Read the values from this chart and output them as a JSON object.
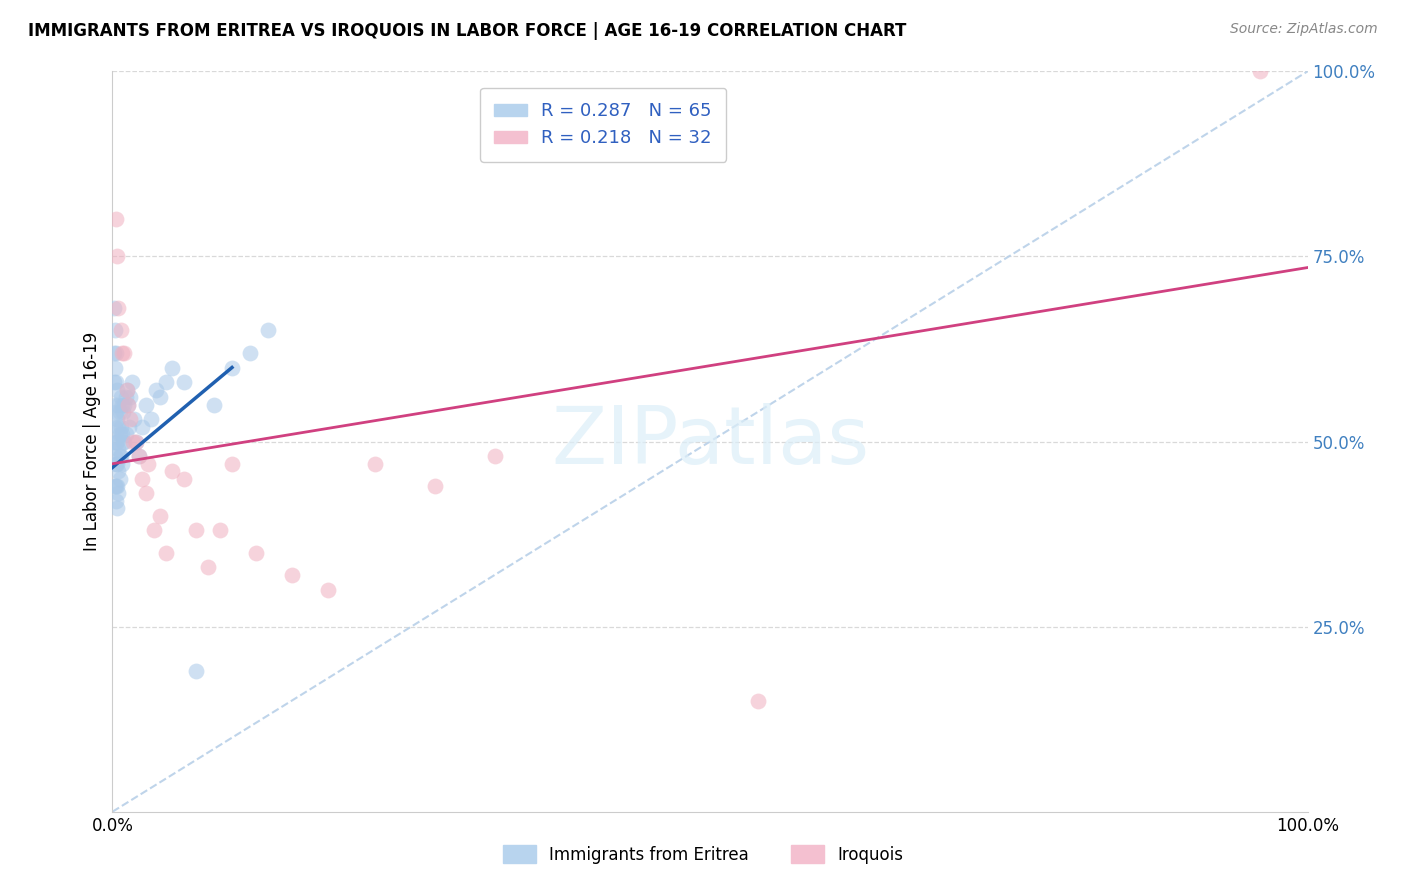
{
  "title": "IMMIGRANTS FROM ERITREA VS IROQUOIS IN LABOR FORCE | AGE 16-19 CORRELATION CHART",
  "source": "Source: ZipAtlas.com",
  "ylabel": "In Labor Force | Age 16-19",
  "legend_entry1": "R = 0.287   N = 65",
  "legend_entry2": "R = 0.218   N = 32",
  "legend_label1": "Immigrants from Eritrea",
  "legend_label2": "Iroquois",
  "blue_scatter_color": "#a8c8e8",
  "pink_scatter_color": "#f0b0c0",
  "blue_line_color": "#2060b0",
  "pink_line_color": "#d04080",
  "diagonal_color": "#b8d0e8",
  "background": "#ffffff",
  "grid_color": "#d0d0d0",
  "right_label_color": "#4080c0",
  "xlim": [
    0,
    1.0
  ],
  "ylim": [
    0,
    1.0
  ],
  "eritrea_x": [
    0.001,
    0.001,
    0.001,
    0.001,
    0.002,
    0.002,
    0.002,
    0.002,
    0.002,
    0.002,
    0.003,
    0.003,
    0.003,
    0.003,
    0.003,
    0.003,
    0.003,
    0.004,
    0.004,
    0.004,
    0.004,
    0.004,
    0.004,
    0.005,
    0.005,
    0.005,
    0.005,
    0.005,
    0.006,
    0.006,
    0.006,
    0.006,
    0.007,
    0.007,
    0.007,
    0.008,
    0.008,
    0.008,
    0.009,
    0.009,
    0.01,
    0.01,
    0.011,
    0.011,
    0.012,
    0.013,
    0.014,
    0.015,
    0.016,
    0.018,
    0.02,
    0.022,
    0.025,
    0.028,
    0.032,
    0.036,
    0.04,
    0.045,
    0.05,
    0.06,
    0.07,
    0.085,
    0.1,
    0.115,
    0.13
  ],
  "eritrea_y": [
    0.68,
    0.62,
    0.58,
    0.5,
    0.65,
    0.6,
    0.55,
    0.52,
    0.48,
    0.44,
    0.62,
    0.58,
    0.54,
    0.5,
    0.47,
    0.44,
    0.42,
    0.57,
    0.53,
    0.5,
    0.47,
    0.44,
    0.41,
    0.55,
    0.52,
    0.49,
    0.46,
    0.43,
    0.54,
    0.51,
    0.48,
    0.45,
    0.56,
    0.52,
    0.48,
    0.55,
    0.51,
    0.47,
    0.54,
    0.5,
    0.55,
    0.5,
    0.56,
    0.51,
    0.57,
    0.55,
    0.52,
    0.56,
    0.58,
    0.53,
    0.5,
    0.48,
    0.52,
    0.55,
    0.53,
    0.57,
    0.56,
    0.58,
    0.6,
    0.58,
    0.19,
    0.55,
    0.6,
    0.62,
    0.65
  ],
  "iroquois_x": [
    0.003,
    0.004,
    0.005,
    0.007,
    0.008,
    0.01,
    0.012,
    0.013,
    0.015,
    0.017,
    0.02,
    0.022,
    0.025,
    0.028,
    0.03,
    0.035,
    0.04,
    0.045,
    0.05,
    0.06,
    0.07,
    0.08,
    0.09,
    0.1,
    0.12,
    0.15,
    0.18,
    0.22,
    0.27,
    0.32,
    0.54,
    0.96
  ],
  "iroquois_y": [
    0.8,
    0.75,
    0.68,
    0.65,
    0.62,
    0.62,
    0.57,
    0.55,
    0.53,
    0.5,
    0.5,
    0.48,
    0.45,
    0.43,
    0.47,
    0.38,
    0.4,
    0.35,
    0.46,
    0.45,
    0.38,
    0.33,
    0.38,
    0.47,
    0.35,
    0.32,
    0.3,
    0.47,
    0.44,
    0.48,
    0.15,
    1.0
  ],
  "blue_trend_x0": 0.0,
  "blue_trend_y0": 0.465,
  "blue_trend_x1": 0.1,
  "blue_trend_y1": 0.6,
  "pink_trend_x0": 0.0,
  "pink_trend_y0": 0.47,
  "pink_trend_x1": 1.0,
  "pink_trend_y1": 0.735
}
